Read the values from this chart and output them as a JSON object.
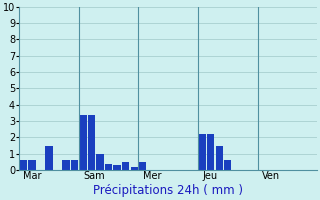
{
  "title": "Précipitations 24h ( mm )",
  "background_color": "#cff0f0",
  "bar_color": "#1a3fbf",
  "grid_color": "#a0c8c8",
  "ylim": [
    0,
    10
  ],
  "yticks": [
    0,
    1,
    2,
    3,
    4,
    5,
    6,
    7,
    8,
    9,
    10
  ],
  "day_labels": [
    "Mar",
    "Sam",
    "Mer",
    "Jeu",
    "Ven"
  ],
  "num_bars": 35,
  "bar_values": [
    0.6,
    0.6,
    0.0,
    1.5,
    0.0,
    0.6,
    0.6,
    3.4,
    3.4,
    1.0,
    0.4,
    0.3,
    0.5,
    0.2,
    0.5,
    0.0,
    0.0,
    0.0,
    0.0,
    0.0,
    0.0,
    2.2,
    2.2,
    1.5,
    0.6,
    0.0,
    0.0,
    0.0,
    0.0,
    0.0,
    0.0,
    0.0,
    0.0,
    0.0,
    0.0
  ],
  "day_start_bars": [
    0,
    7,
    14,
    21,
    28
  ],
  "xlabel_fontsize": 8.5,
  "tick_fontsize": 7,
  "spine_color": "#5090a0"
}
